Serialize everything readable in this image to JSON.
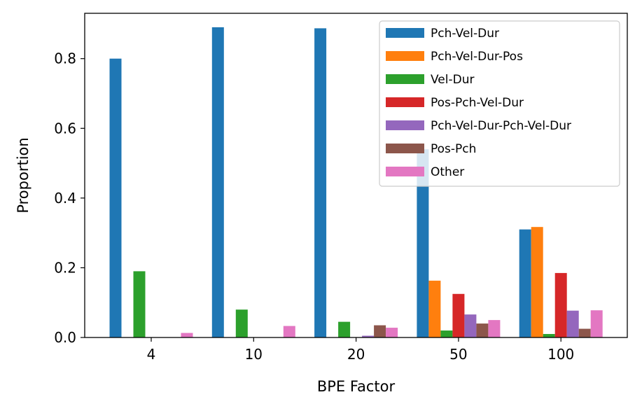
{
  "chart_data": {
    "type": "bar",
    "title": "",
    "xlabel": "BPE Factor",
    "ylabel": "Proportion",
    "categories": [
      "4",
      "10",
      "20",
      "50",
      "100"
    ],
    "ylim": [
      0,
      0.93
    ],
    "yticks": [
      "0.0",
      "0.2",
      "0.4",
      "0.6",
      "0.8"
    ],
    "grid": false,
    "legend_position": "top-right",
    "series": [
      {
        "name": "Pch-Vel-Dur",
        "color": "#1f77b4",
        "values": [
          0.8,
          0.89,
          0.887,
          0.54,
          0.31
        ]
      },
      {
        "name": "Pch-Vel-Dur-Pos",
        "color": "#ff7f0e",
        "values": [
          0,
          0,
          0,
          0.163,
          0.317
        ]
      },
      {
        "name": "Vel-Dur",
        "color": "#2ca02c",
        "values": [
          0.19,
          0.08,
          0.045,
          0.02,
          0.01
        ]
      },
      {
        "name": "Pos-Pch-Vel-Dur",
        "color": "#d62728",
        "values": [
          0,
          0,
          0,
          0.125,
          0.185
        ]
      },
      {
        "name": "Pch-Vel-Dur-Pch-Vel-Dur",
        "color": "#9467bd",
        "values": [
          0,
          0,
          0.005,
          0.066,
          0.077
        ]
      },
      {
        "name": "Pos-Pch",
        "color": "#8c564b",
        "values": [
          0,
          0,
          0.035,
          0.04,
          0.025
        ]
      },
      {
        "name": "Other",
        "color": "#e377c2",
        "values": [
          0.013,
          0.033,
          0.028,
          0.05,
          0.078
        ]
      }
    ]
  }
}
